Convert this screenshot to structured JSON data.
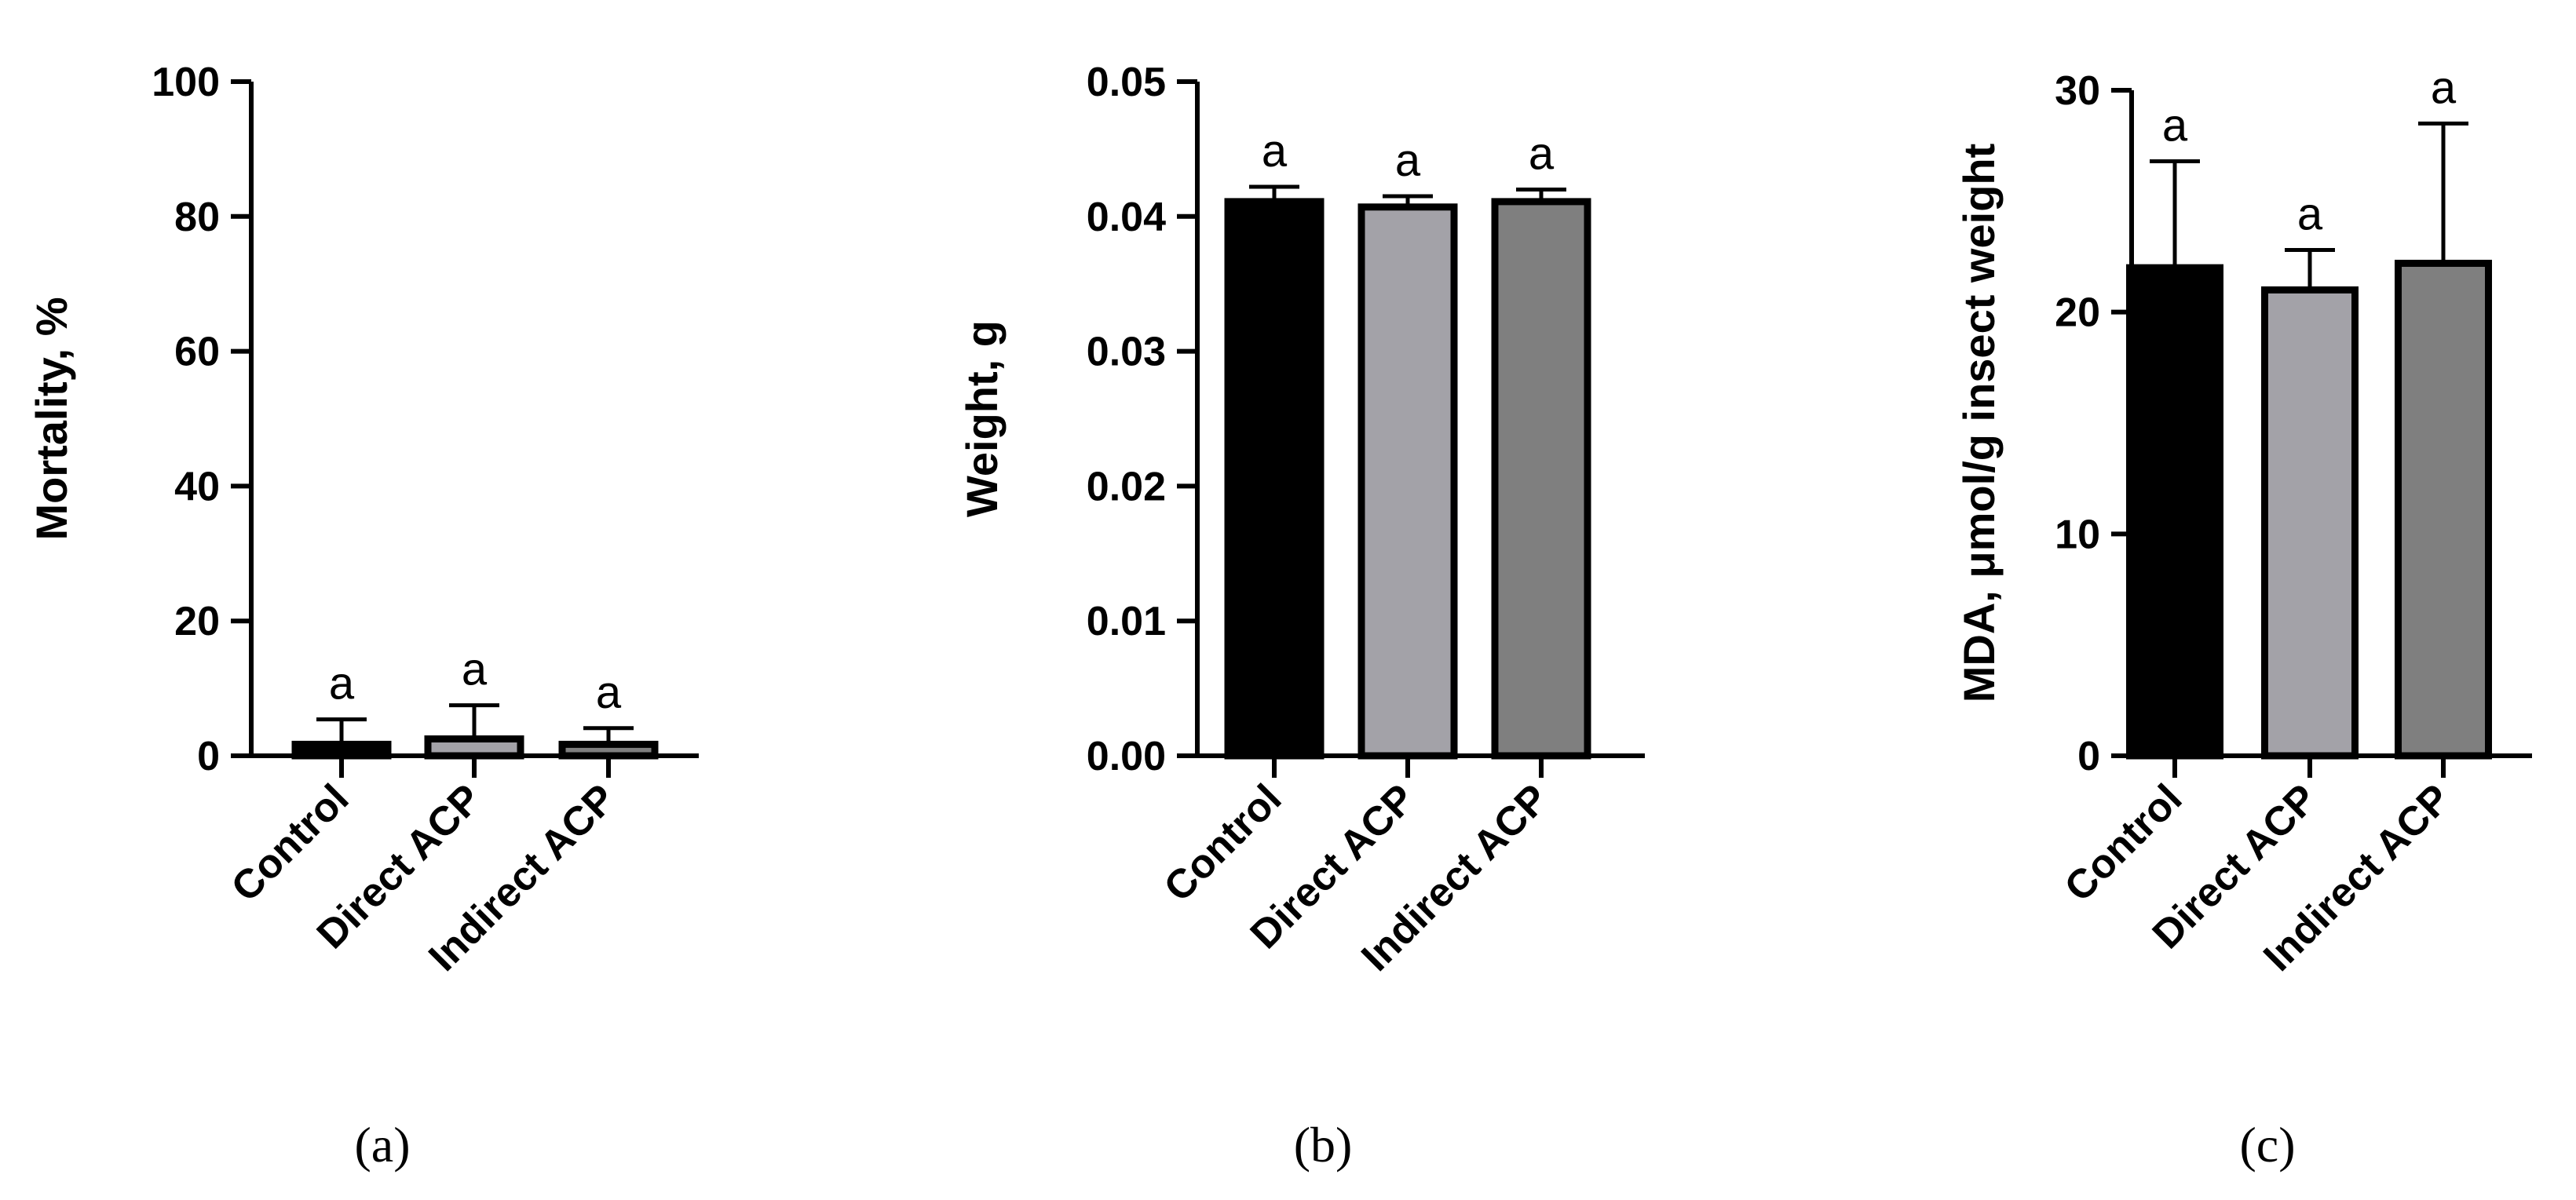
{
  "chart_data": [
    {
      "type": "bar",
      "panel_label": "(a)",
      "ylabel": "Mortality, %",
      "ylim": [
        0,
        100
      ],
      "yticks": [
        "0",
        "20",
        "40",
        "60",
        "80",
        "100"
      ],
      "categories": [
        "Control",
        "Direct ACP",
        "Indirect ACP"
      ],
      "values": [
        1.7,
        2.5,
        1.7
      ],
      "errors": [
        3.7,
        5.0,
        2.4
      ],
      "significance": [
        "a",
        "a",
        "a"
      ],
      "colors": [
        "#000000",
        "#a3a2a8",
        "#7f7f7f"
      ]
    },
    {
      "type": "bar",
      "panel_label": "(b)",
      "ylabel": "Weight, g",
      "ylim": [
        0,
        0.05
      ],
      "yticks": [
        "0.00",
        "0.01",
        "0.02",
        "0.03",
        "0.04",
        "0.05"
      ],
      "categories": [
        "Control",
        "Direct ACP",
        "Indirect ACP"
      ],
      "values": [
        0.0411,
        0.0407,
        0.0411
      ],
      "errors": [
        0.0011,
        0.0008,
        0.0009
      ],
      "significance": [
        "a",
        "a",
        "a"
      ],
      "colors": [
        "#000000",
        "#a3a2a8",
        "#7f7f7f"
      ]
    },
    {
      "type": "bar",
      "panel_label": "(c)",
      "ylabel": "MDA, μmol/g insect weight",
      "ylim": [
        0,
        30
      ],
      "yticks": [
        "0",
        "10",
        "20",
        "30"
      ],
      "categories": [
        "Control",
        "Direct ACP",
        "Indirect ACP"
      ],
      "values": [
        22.0,
        21.0,
        22.2
      ],
      "errors": [
        4.8,
        1.8,
        6.3
      ],
      "significance": [
        "a",
        "a",
        "a"
      ],
      "colors": [
        "#000000",
        "#a3a2a8",
        "#7f7f7f"
      ]
    }
  ]
}
